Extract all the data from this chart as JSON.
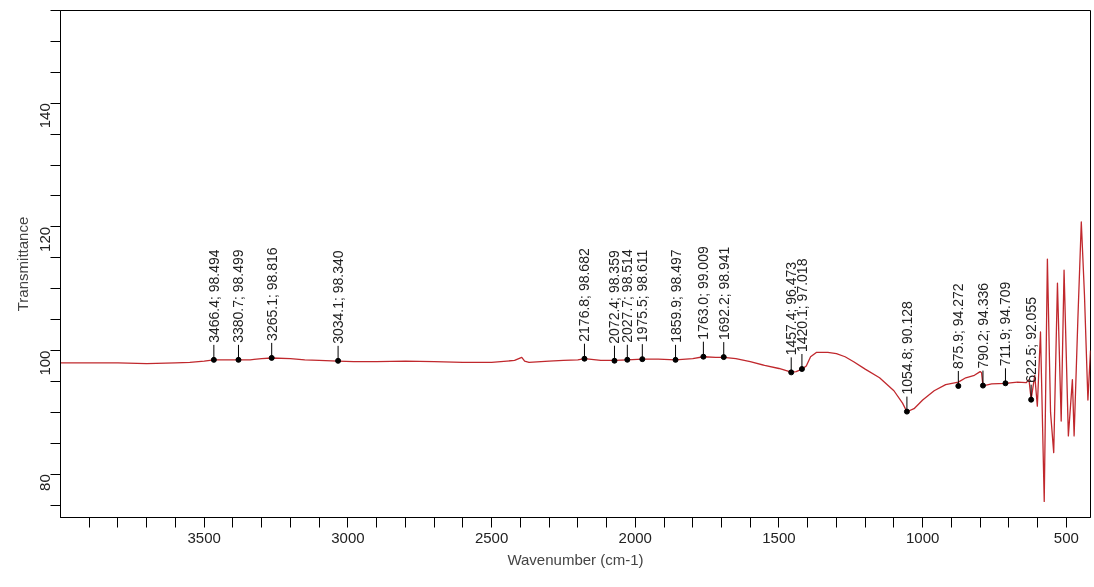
{
  "chart_data": {
    "type": "line",
    "xlabel": "Wavenumber (cm-1)",
    "ylabel": "Transmittance",
    "xlim": [
      4000,
      416
    ],
    "ylim": [
      73,
      155
    ],
    "xticks": [
      {
        "value": 3900,
        "label": null
      },
      {
        "value": 3800,
        "label": null
      },
      {
        "value": 3700,
        "label": null
      },
      {
        "value": 3600,
        "label": null
      },
      3500,
      {
        "value": 3400,
        "label": null
      },
      {
        "value": 3300,
        "label": null
      },
      {
        "value": 3200,
        "label": null
      },
      {
        "value": 3100,
        "label": null
      },
      3000,
      {
        "value": 2900,
        "label": null
      },
      {
        "value": 2800,
        "label": null
      },
      {
        "value": 2700,
        "label": null
      },
      {
        "value": 2600,
        "label": null
      },
      2500,
      {
        "value": 2400,
        "label": null
      },
      {
        "value": 2300,
        "label": null
      },
      {
        "value": 2200,
        "label": null
      },
      {
        "value": 2100,
        "label": null
      },
      2000,
      {
        "value": 1900,
        "label": null
      },
      {
        "value": 1800,
        "label": null
      },
      {
        "value": 1700,
        "label": null
      },
      {
        "value": 1600,
        "label": null
      },
      1500,
      {
        "value": 1400,
        "label": null
      },
      {
        "value": 1300,
        "label": null
      },
      {
        "value": 1200,
        "label": null
      },
      {
        "value": 1100,
        "label": null
      },
      1000,
      {
        "value": 900,
        "label": null
      },
      {
        "value": 800,
        "label": null
      },
      {
        "value": 700,
        "label": null
      },
      {
        "value": 600,
        "label": null
      },
      500
    ],
    "yticks": [
      {
        "value": 75,
        "label": null
      },
      80,
      {
        "value": 85,
        "label": null
      },
      {
        "value": 90,
        "label": null
      },
      {
        "value": 95,
        "label": null
      },
      100,
      {
        "value": 105,
        "label": null
      },
      {
        "value": 110,
        "label": null
      },
      {
        "value": 115,
        "label": null
      },
      120,
      {
        "value": 125,
        "label": null
      },
      {
        "value": 130,
        "label": null
      },
      {
        "value": 135,
        "label": null
      },
      140,
      {
        "value": 145,
        "label": null
      },
      {
        "value": 150,
        "label": null
      },
      {
        "value": 155,
        "label": null
      }
    ],
    "grid": false,
    "marker": "none",
    "line_style": "solid",
    "series": [
      {
        "color": "#c0282d",
        "x": [
          4000,
          3900,
          3800,
          3700,
          3600,
          3550,
          3500,
          3466.4,
          3420,
          3380.7,
          3340,
          3300,
          3265.1,
          3200,
          3150,
          3100,
          3034.1,
          2980,
          2900,
          2800,
          2700,
          2600,
          2500,
          2420,
          2395,
          2385,
          2370,
          2300,
          2250,
          2200,
          2176.8,
          2120,
          2072.4,
          2027.7,
          1975.5,
          1920,
          1859.9,
          1800,
          1763,
          1720,
          1692.2,
          1650,
          1600,
          1550,
          1500,
          1457.4,
          1440,
          1420.1,
          1405,
          1390,
          1370,
          1330,
          1300,
          1270,
          1240,
          1200,
          1150,
          1100,
          1070,
          1054.8,
          1030,
          1000,
          960,
          920,
          875.9,
          850,
          820,
          800,
          795,
          790.2,
          760,
          711.9,
          670,
          640,
          630,
          622.5,
          610,
          601,
          590,
          577,
          566,
          555,
          544,
          531,
          518,
          508,
          493,
          479,
          473,
          460,
          448,
          437,
          425,
          416
        ],
        "values": [
          98.0,
          98.0,
          98.0,
          97.9,
          98.0,
          98.1,
          98.3,
          98.5,
          98.5,
          98.5,
          98.5,
          98.7,
          98.8,
          98.7,
          98.5,
          98.4,
          98.3,
          98.2,
          98.2,
          98.3,
          98.2,
          98.1,
          98.1,
          98.4,
          98.9,
          98.3,
          98.1,
          98.3,
          98.4,
          98.5,
          98.7,
          98.4,
          98.4,
          98.5,
          98.6,
          98.6,
          98.5,
          98.7,
          99.0,
          98.9,
          98.9,
          98.7,
          98.2,
          97.6,
          97.1,
          96.5,
          96.6,
          97.0,
          97.5,
          99.0,
          99.7,
          99.7,
          99.5,
          99.0,
          98.2,
          97.0,
          95.6,
          93.5,
          91.5,
          90.1,
          90.6,
          92.0,
          93.5,
          94.5,
          94.9,
          95.6,
          96.0,
          96.6,
          96.4,
          94.3,
          94.6,
          94.7,
          94.9,
          94.8,
          95.3,
          92.1,
          96.0,
          91.0,
          103.0,
          75.6,
          114.8,
          90.0,
          83.5,
          110.9,
          88.6,
          113.0,
          86.2,
          95.3,
          86.2,
          105.0,
          120.8,
          109.0,
          92.0,
          100.0
        ]
      }
    ],
    "annotations": [
      {
        "text": "3466.4; 98.494",
        "x": 3466.4,
        "y": 98.494
      },
      {
        "text": "3380.7; 98.499",
        "x": 3380.7,
        "y": 98.499
      },
      {
        "text": "3265.1; 98.816",
        "x": 3265.1,
        "y": 98.816
      },
      {
        "text": "3034.1; 98.340",
        "x": 3034.1,
        "y": 98.34
      },
      {
        "text": "2176.8; 98.682",
        "x": 2176.8,
        "y": 98.682
      },
      {
        "text": "2072.4; 98.359",
        "x": 2072.4,
        "y": 98.359
      },
      {
        "text": "2027.7; 98.514",
        "x": 2027.7,
        "y": 98.514
      },
      {
        "text": "1975.5; 98.611",
        "x": 1975.5,
        "y": 98.611
      },
      {
        "text": "1859.9; 98.497",
        "x": 1859.9,
        "y": 98.497
      },
      {
        "text": "1763.0; 99.009",
        "x": 1763.0,
        "y": 99.009
      },
      {
        "text": "1692.2; 98.941",
        "x": 1692.2,
        "y": 98.941
      },
      {
        "text": "1457.4; 96.473",
        "x": 1457.4,
        "y": 96.473
      },
      {
        "text": "1420.1; 97.018",
        "x": 1420.1,
        "y": 97.018
      },
      {
        "text": "1054.8; 90.128",
        "x": 1054.8,
        "y": 90.128
      },
      {
        "text": "875.9; 94.272",
        "x": 875.9,
        "y": 94.272
      },
      {
        "text": "790.2; 94.336",
        "x": 790.2,
        "y": 94.336
      },
      {
        "text": "711.9; 94.709",
        "x": 711.9,
        "y": 94.709
      },
      {
        "text": "622.5; 92.055",
        "x": 622.5,
        "y": 92.055
      }
    ]
  }
}
